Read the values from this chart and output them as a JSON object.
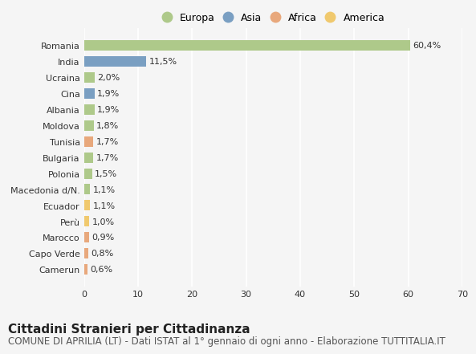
{
  "countries": [
    "Romania",
    "India",
    "Ucraina",
    "Cina",
    "Albania",
    "Moldova",
    "Tunisia",
    "Bulgaria",
    "Polonia",
    "Macedonia d/N.",
    "Ecuador",
    "Perù",
    "Marocco",
    "Capo Verde",
    "Camerun"
  ],
  "values": [
    60.4,
    11.5,
    2.0,
    1.9,
    1.9,
    1.8,
    1.7,
    1.7,
    1.5,
    1.1,
    1.1,
    1.0,
    0.9,
    0.8,
    0.6
  ],
  "labels": [
    "60,4%",
    "11,5%",
    "2,0%",
    "1,9%",
    "1,9%",
    "1,8%",
    "1,7%",
    "1,7%",
    "1,5%",
    "1,1%",
    "1,1%",
    "1,0%",
    "0,9%",
    "0,8%",
    "0,6%"
  ],
  "regions": [
    "Europa",
    "Asia",
    "Europa",
    "Asia",
    "Europa",
    "Europa",
    "Africa",
    "Europa",
    "Europa",
    "Europa",
    "America",
    "America",
    "Africa",
    "Africa",
    "Africa"
  ],
  "region_colors": {
    "Europa": "#aec98a",
    "Asia": "#7a9fc2",
    "Africa": "#e8a87c",
    "America": "#f0c96e"
  },
  "legend_order": [
    "Europa",
    "Asia",
    "Africa",
    "America"
  ],
  "xlim": [
    0,
    70
  ],
  "xticks": [
    0,
    10,
    20,
    30,
    40,
    50,
    60,
    70
  ],
  "title": "Cittadini Stranieri per Cittadinanza",
  "subtitle": "COMUNE DI APRILIA (LT) - Dati ISTAT al 1° gennaio di ogni anno - Elaborazione TUTTITALIA.IT",
  "bg_color": "#f5f5f5",
  "grid_color": "#ffffff",
  "bar_height": 0.65,
  "title_fontsize": 11,
  "subtitle_fontsize": 8.5,
  "label_fontsize": 8,
  "tick_fontsize": 8,
  "legend_fontsize": 9
}
